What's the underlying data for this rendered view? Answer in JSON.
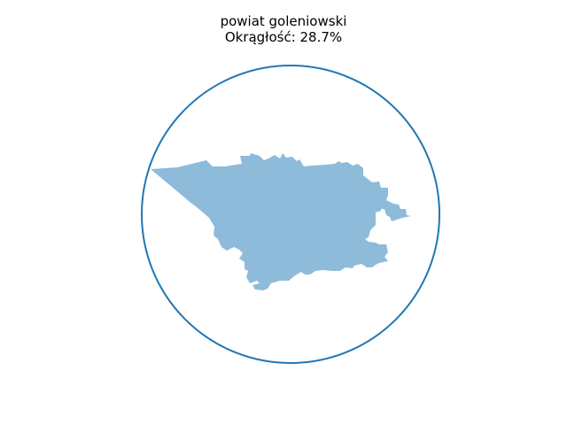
{
  "title": {
    "line1": "powiat goleniowski",
    "line2": "Okrągłość: 28.7%"
  },
  "shape": {
    "region_name": "powiat goleniowski",
    "roundness_percent": 28.7,
    "fill_color": "#8fbbda",
    "circle_color": "#1f77b4"
  }
}
